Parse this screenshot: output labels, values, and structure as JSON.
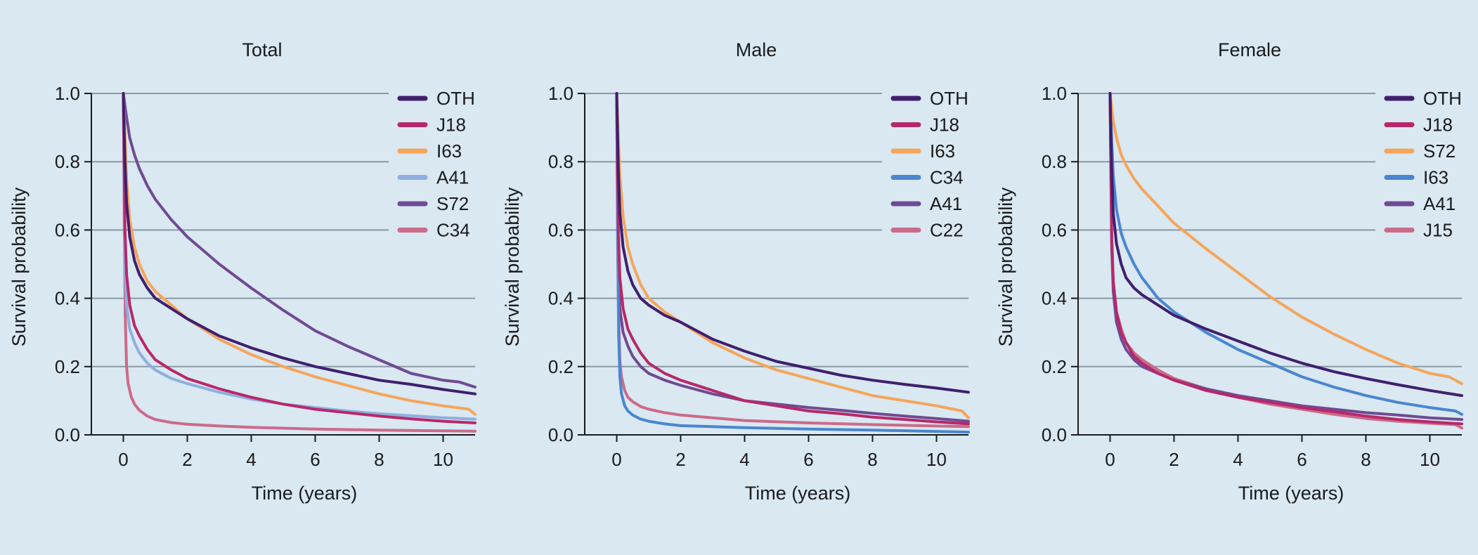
{
  "colors": {
    "background": "#d9e8f1",
    "OTH": "#3f1f6e",
    "J18": "#b7286a",
    "I63": "#f5a55a",
    "S72_total": "#6f4a93",
    "A41_total": "#8faee0",
    "C34_total": "#cc6a8a",
    "C34_male": "#4a86cf",
    "A41_male": "#6f4a93",
    "C22": "#cc6a8a",
    "S72_female": "#f5a55a",
    "I63_female": "#4a86cf",
    "A41_female": "#6f4a93",
    "J15": "#cc6a8a"
  },
  "chart_data": [
    {
      "type": "line",
      "title": "Total",
      "xlabel": "Time (years)",
      "ylabel": "Survival probability",
      "xlim": [
        -1,
        11
      ],
      "ylim": [
        0,
        1
      ],
      "xticks": [
        "0",
        "2",
        "4",
        "6",
        "8",
        "10"
      ],
      "yticks": [
        "0.0",
        "0.2",
        "0.4",
        "0.6",
        "0.8",
        "1.0"
      ],
      "grid": "horizontal",
      "legend_position": "top-right",
      "series": [
        {
          "name": "OTH",
          "color": "#3f1f6e",
          "x": [
            0,
            0.05,
            0.1,
            0.2,
            0.35,
            0.5,
            0.75,
            1,
            1.5,
            2,
            3,
            4,
            5,
            6,
            7,
            8,
            9,
            10,
            11
          ],
          "y": [
            1.0,
            0.8,
            0.68,
            0.58,
            0.51,
            0.47,
            0.43,
            0.4,
            0.37,
            0.34,
            0.29,
            0.255,
            0.225,
            0.2,
            0.18,
            0.16,
            0.148,
            0.133,
            0.12
          ]
        },
        {
          "name": "J18",
          "color": "#b7286a",
          "x": [
            0,
            0.05,
            0.1,
            0.2,
            0.35,
            0.5,
            0.75,
            1,
            1.5,
            2,
            3,
            4,
            5,
            6,
            7,
            8,
            9,
            10,
            11
          ],
          "y": [
            1.0,
            0.6,
            0.47,
            0.38,
            0.32,
            0.29,
            0.25,
            0.22,
            0.19,
            0.165,
            0.135,
            0.11,
            0.09,
            0.075,
            0.065,
            0.055,
            0.047,
            0.04,
            0.035
          ]
        },
        {
          "name": "I63",
          "color": "#f5a55a",
          "x": [
            0,
            0.05,
            0.1,
            0.2,
            0.35,
            0.5,
            0.75,
            1,
            1.5,
            2,
            3,
            4,
            5,
            6,
            7,
            8,
            9,
            10,
            10.8,
            11
          ],
          "y": [
            1.0,
            0.88,
            0.75,
            0.63,
            0.55,
            0.5,
            0.45,
            0.42,
            0.38,
            0.34,
            0.28,
            0.235,
            0.2,
            0.17,
            0.145,
            0.12,
            0.1,
            0.085,
            0.075,
            0.06
          ]
        },
        {
          "name": "A41",
          "color": "#8faee0",
          "x": [
            0,
            0.05,
            0.1,
            0.2,
            0.35,
            0.5,
            0.75,
            1,
            1.5,
            2,
            3,
            4,
            5,
            6,
            7,
            8,
            9,
            10,
            11
          ],
          "y": [
            1.0,
            0.5,
            0.38,
            0.31,
            0.27,
            0.24,
            0.21,
            0.19,
            0.165,
            0.15,
            0.125,
            0.105,
            0.09,
            0.08,
            0.07,
            0.062,
            0.056,
            0.05,
            0.046
          ]
        },
        {
          "name": "S72",
          "color": "#6f4a93",
          "x": [
            0,
            0.1,
            0.2,
            0.35,
            0.5,
            0.75,
            1,
            1.5,
            2,
            3,
            4,
            5,
            6,
            7,
            8,
            9,
            9.5,
            10,
            10.5,
            11
          ],
          "y": [
            1.0,
            0.93,
            0.87,
            0.82,
            0.78,
            0.73,
            0.69,
            0.63,
            0.58,
            0.5,
            0.43,
            0.365,
            0.305,
            0.26,
            0.22,
            0.18,
            0.17,
            0.16,
            0.155,
            0.14
          ]
        },
        {
          "name": "C34",
          "color": "#cc6a8a",
          "x": [
            0,
            0.03,
            0.06,
            0.1,
            0.15,
            0.25,
            0.35,
            0.5,
            0.75,
            1,
            1.5,
            2,
            3,
            4,
            6,
            8,
            10,
            11
          ],
          "y": [
            1.0,
            0.6,
            0.35,
            0.2,
            0.15,
            0.11,
            0.09,
            0.072,
            0.055,
            0.045,
            0.036,
            0.031,
            0.026,
            0.022,
            0.017,
            0.014,
            0.012,
            0.011
          ]
        }
      ]
    },
    {
      "type": "line",
      "title": "Male",
      "xlabel": "Time (years)",
      "ylabel": "Survival probability",
      "xlim": [
        -1,
        11
      ],
      "ylim": [
        0,
        1
      ],
      "xticks": [
        "0",
        "2",
        "4",
        "6",
        "8",
        "10"
      ],
      "yticks": [
        "0.0",
        "0.2",
        "0.4",
        "0.6",
        "0.8",
        "1.0"
      ],
      "grid": "horizontal",
      "legend_position": "top-right",
      "series": [
        {
          "name": "OTH",
          "color": "#3f1f6e",
          "x": [
            0,
            0.05,
            0.1,
            0.2,
            0.35,
            0.5,
            0.75,
            1,
            1.5,
            2,
            3,
            4,
            5,
            6,
            7,
            8,
            9,
            10,
            11
          ],
          "y": [
            1.0,
            0.78,
            0.65,
            0.55,
            0.48,
            0.44,
            0.4,
            0.38,
            0.35,
            0.33,
            0.28,
            0.245,
            0.215,
            0.195,
            0.175,
            0.16,
            0.148,
            0.137,
            0.125
          ]
        },
        {
          "name": "J18",
          "color": "#b7286a",
          "x": [
            0,
            0.05,
            0.1,
            0.2,
            0.35,
            0.5,
            0.75,
            1,
            1.5,
            2,
            3,
            4,
            5,
            6,
            7,
            8,
            9,
            10,
            11
          ],
          "y": [
            1.0,
            0.6,
            0.46,
            0.37,
            0.31,
            0.28,
            0.24,
            0.21,
            0.18,
            0.16,
            0.13,
            0.1,
            0.085,
            0.07,
            0.062,
            0.052,
            0.045,
            0.038,
            0.032
          ]
        },
        {
          "name": "I63",
          "color": "#f5a55a",
          "x": [
            0,
            0.05,
            0.1,
            0.2,
            0.35,
            0.5,
            0.75,
            1,
            1.5,
            2,
            3,
            4,
            5,
            6,
            7,
            8,
            9,
            10,
            10.8,
            11
          ],
          "y": [
            1.0,
            0.88,
            0.76,
            0.64,
            0.55,
            0.5,
            0.44,
            0.4,
            0.36,
            0.33,
            0.27,
            0.225,
            0.19,
            0.165,
            0.14,
            0.115,
            0.1,
            0.085,
            0.07,
            0.05
          ]
        },
        {
          "name": "C34",
          "color": "#4a86cf",
          "x": [
            0,
            0.03,
            0.06,
            0.1,
            0.15,
            0.25,
            0.35,
            0.5,
            0.75,
            1,
            1.5,
            2,
            3,
            4,
            6,
            8,
            10,
            11
          ],
          "y": [
            1.0,
            0.6,
            0.3,
            0.17,
            0.12,
            0.085,
            0.07,
            0.058,
            0.046,
            0.04,
            0.032,
            0.027,
            0.024,
            0.021,
            0.017,
            0.014,
            0.01,
            0.008
          ]
        },
        {
          "name": "A41",
          "color": "#6f4a93",
          "x": [
            0,
            0.05,
            0.1,
            0.2,
            0.35,
            0.5,
            0.75,
            1,
            1.5,
            2,
            3,
            4,
            5,
            6,
            7,
            8,
            9,
            10,
            11
          ],
          "y": [
            1.0,
            0.5,
            0.37,
            0.3,
            0.26,
            0.23,
            0.2,
            0.18,
            0.16,
            0.145,
            0.12,
            0.1,
            0.09,
            0.08,
            0.072,
            0.063,
            0.055,
            0.048,
            0.04
          ]
        },
        {
          "name": "C22",
          "color": "#cc6a8a",
          "x": [
            0,
            0.03,
            0.06,
            0.1,
            0.15,
            0.25,
            0.35,
            0.5,
            0.75,
            1,
            1.5,
            2,
            3,
            4,
            6,
            8,
            10,
            11
          ],
          "y": [
            1.0,
            0.55,
            0.35,
            0.22,
            0.17,
            0.13,
            0.11,
            0.097,
            0.083,
            0.075,
            0.065,
            0.058,
            0.05,
            0.042,
            0.035,
            0.03,
            0.026,
            0.024
          ]
        }
      ]
    },
    {
      "type": "line",
      "title": "Female",
      "xlabel": "Time (years)",
      "ylabel": "Survival probability",
      "xlim": [
        -1,
        11
      ],
      "ylim": [
        0,
        1
      ],
      "xticks": [
        "0",
        "2",
        "4",
        "6",
        "8",
        "10"
      ],
      "yticks": [
        "0.0",
        "0.2",
        "0.4",
        "0.6",
        "0.8",
        "1.0"
      ],
      "grid": "horizontal",
      "legend_position": "top-right",
      "series": [
        {
          "name": "OTH",
          "color": "#3f1f6e",
          "x": [
            0,
            0.05,
            0.1,
            0.2,
            0.35,
            0.5,
            0.75,
            1,
            1.5,
            2,
            3,
            4,
            5,
            6,
            7,
            8,
            9,
            10,
            11
          ],
          "y": [
            1.0,
            0.78,
            0.65,
            0.56,
            0.5,
            0.46,
            0.43,
            0.41,
            0.38,
            0.35,
            0.31,
            0.275,
            0.24,
            0.21,
            0.185,
            0.165,
            0.147,
            0.13,
            0.115
          ]
        },
        {
          "name": "J18",
          "color": "#b7286a",
          "x": [
            0,
            0.05,
            0.1,
            0.2,
            0.35,
            0.5,
            0.75,
            1,
            1.5,
            2,
            3,
            4,
            5,
            6,
            7,
            8,
            9,
            10,
            11
          ],
          "y": [
            1.0,
            0.58,
            0.45,
            0.36,
            0.3,
            0.27,
            0.23,
            0.21,
            0.18,
            0.16,
            0.13,
            0.11,
            0.095,
            0.08,
            0.068,
            0.055,
            0.045,
            0.038,
            0.032
          ]
        },
        {
          "name": "S72",
          "color": "#f5a55a",
          "x": [
            0,
            0.05,
            0.1,
            0.2,
            0.35,
            0.5,
            0.75,
            1,
            1.5,
            2,
            3,
            4,
            5,
            6,
            7,
            8,
            9,
            10,
            10.6,
            11
          ],
          "y": [
            1.0,
            0.96,
            0.92,
            0.87,
            0.82,
            0.79,
            0.75,
            0.72,
            0.67,
            0.62,
            0.545,
            0.475,
            0.405,
            0.345,
            0.295,
            0.25,
            0.21,
            0.18,
            0.17,
            0.15
          ]
        },
        {
          "name": "I63",
          "color": "#4a86cf",
          "x": [
            0,
            0.05,
            0.1,
            0.2,
            0.35,
            0.5,
            0.75,
            1,
            1.5,
            2,
            3,
            4,
            5,
            6,
            7,
            8,
            9,
            10,
            10.8,
            11
          ],
          "y": [
            1.0,
            0.86,
            0.76,
            0.66,
            0.59,
            0.55,
            0.5,
            0.46,
            0.4,
            0.36,
            0.3,
            0.25,
            0.21,
            0.17,
            0.14,
            0.115,
            0.095,
            0.08,
            0.07,
            0.06
          ]
        },
        {
          "name": "A41",
          "color": "#6f4a93",
          "x": [
            0,
            0.05,
            0.1,
            0.2,
            0.35,
            0.5,
            0.75,
            1,
            1.5,
            2,
            3,
            4,
            5,
            6,
            7,
            8,
            9,
            10,
            11
          ],
          "y": [
            1.0,
            0.55,
            0.42,
            0.33,
            0.28,
            0.25,
            0.22,
            0.2,
            0.18,
            0.16,
            0.135,
            0.115,
            0.1,
            0.085,
            0.075,
            0.065,
            0.058,
            0.05,
            0.045
          ]
        },
        {
          "name": "J15",
          "color": "#cc6a8a",
          "x": [
            0,
            0.05,
            0.1,
            0.2,
            0.35,
            0.5,
            0.75,
            1,
            1.5,
            2,
            3,
            4,
            5,
            6,
            7,
            8,
            9,
            10,
            10.8,
            11
          ],
          "y": [
            1.0,
            0.58,
            0.45,
            0.36,
            0.31,
            0.27,
            0.24,
            0.22,
            0.19,
            0.165,
            0.135,
            0.11,
            0.09,
            0.075,
            0.06,
            0.048,
            0.04,
            0.034,
            0.03,
            0.02
          ]
        }
      ]
    }
  ]
}
